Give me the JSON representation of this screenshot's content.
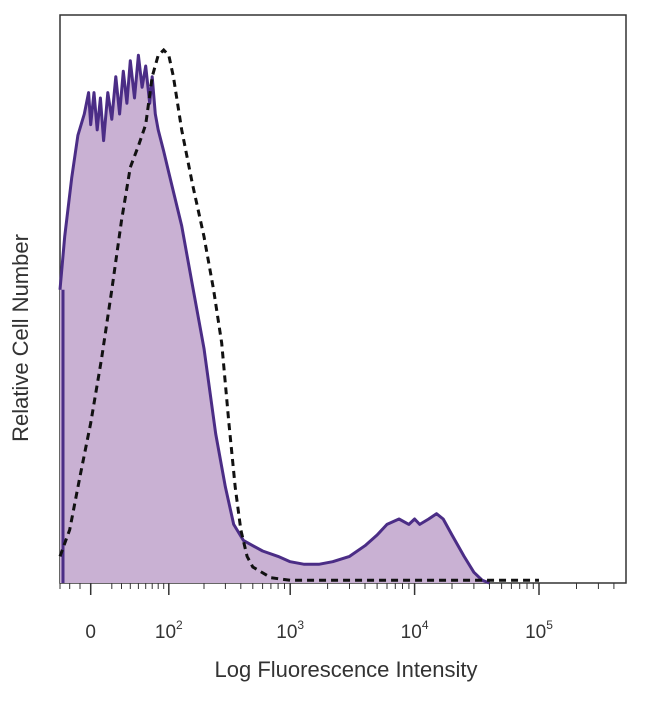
{
  "chart_data": {
    "type": "area",
    "title": "",
    "xlabel": "Log Fluorescence Intensity",
    "ylabel": "Relative Cell Number",
    "x_scale": "biexponential",
    "xlim": [
      -30,
      500000
    ],
    "ylim": [
      0,
      100
    ],
    "grid": false,
    "legend": "none",
    "x_ticks": [
      {
        "value": 0,
        "base": "0",
        "exp": ""
      },
      {
        "value": 100,
        "base": "10",
        "exp": "2"
      },
      {
        "value": 1000,
        "base": "10",
        "exp": "3"
      },
      {
        "value": 10000,
        "base": "10",
        "exp": "4"
      },
      {
        "value": 100000,
        "base": "10",
        "exp": "5"
      }
    ],
    "series": [
      {
        "style": "filled-solid",
        "stroke": "#4b2d86",
        "fill": "#c9b1d3",
        "points": [
          [
            -30,
            55
          ],
          [
            -25,
            65
          ],
          [
            -18,
            76
          ],
          [
            -12,
            84
          ],
          [
            -6,
            88
          ],
          [
            -2,
            92
          ],
          [
            0,
            86
          ],
          [
            3,
            92
          ],
          [
            6,
            85
          ],
          [
            9,
            91
          ],
          [
            12,
            83
          ],
          [
            16,
            92
          ],
          [
            20,
            87
          ],
          [
            24,
            95
          ],
          [
            28,
            88
          ],
          [
            32,
            96
          ],
          [
            36,
            90
          ],
          [
            40,
            98
          ],
          [
            45,
            91
          ],
          [
            50,
            99
          ],
          [
            55,
            93
          ],
          [
            60,
            97
          ],
          [
            66,
            90
          ],
          [
            70,
            95
          ],
          [
            75,
            88
          ],
          [
            80,
            85
          ],
          [
            90,
            81
          ],
          [
            100,
            77
          ],
          [
            130,
            67
          ],
          [
            160,
            56
          ],
          [
            200,
            44
          ],
          [
            250,
            28
          ],
          [
            300,
            18
          ],
          [
            350,
            11
          ],
          [
            420,
            8
          ],
          [
            500,
            7
          ],
          [
            600,
            6
          ],
          [
            800,
            5
          ],
          [
            1000,
            4
          ],
          [
            1300,
            3.5
          ],
          [
            1700,
            3.5
          ],
          [
            2200,
            4
          ],
          [
            3000,
            5
          ],
          [
            4000,
            7
          ],
          [
            5000,
            9
          ],
          [
            6000,
            11
          ],
          [
            7500,
            12
          ],
          [
            9000,
            11
          ],
          [
            10000,
            12
          ],
          [
            11000,
            11
          ],
          [
            13000,
            12
          ],
          [
            15000,
            13
          ],
          [
            17000,
            12
          ],
          [
            20000,
            9
          ],
          [
            25000,
            5
          ],
          [
            30000,
            2
          ],
          [
            35000,
            0.5
          ],
          [
            40000,
            0
          ]
        ]
      },
      {
        "style": "dashed",
        "stroke": "#111111",
        "points": [
          [
            -30,
            5
          ],
          [
            -20,
            10
          ],
          [
            -10,
            20
          ],
          [
            0,
            30
          ],
          [
            10,
            42
          ],
          [
            20,
            55
          ],
          [
            30,
            68
          ],
          [
            40,
            78
          ],
          [
            50,
            82
          ],
          [
            60,
            86
          ],
          [
            70,
            95
          ],
          [
            80,
            99
          ],
          [
            90,
            100
          ],
          [
            100,
            99
          ],
          [
            110,
            95
          ],
          [
            130,
            85
          ],
          [
            160,
            75
          ],
          [
            200,
            65
          ],
          [
            240,
            55
          ],
          [
            280,
            45
          ],
          [
            320,
            30
          ],
          [
            360,
            18
          ],
          [
            400,
            10
          ],
          [
            450,
            5
          ],
          [
            500,
            3
          ],
          [
            700,
            1
          ],
          [
            1000,
            0.5
          ],
          [
            100000,
            0.5
          ]
        ]
      }
    ]
  }
}
